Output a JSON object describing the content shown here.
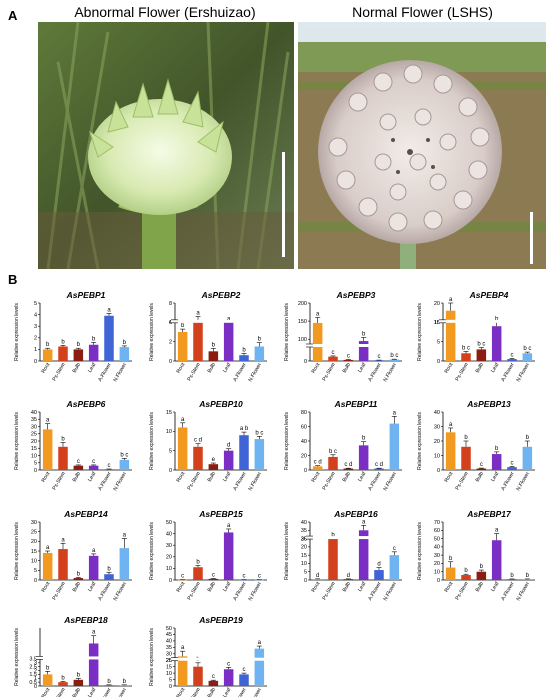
{
  "panel_a": {
    "letter": "A",
    "left_title": "Abnormal Flower (Ershuizao)",
    "right_title": "Normal Flower (LSHS)"
  },
  "panel_b": {
    "letter": "B",
    "ylabel": "Relative expression levels"
  },
  "colors": {
    "Root": "#f29a1f",
    "Ps-Stem": "#d2401c",
    "Bulb": "#8b1d12",
    "Leaf": "#7a2ec4",
    "A.Flower": "#3f64d6",
    "N.Flower": "#6fb4f0"
  },
  "chart_data": [
    {
      "type": "bar",
      "title": "AsPEBP1",
      "categories": [
        "Root",
        "Ps-Stem",
        "Bulb",
        "Leaf",
        "A.Flower",
        "N.Flower"
      ],
      "values": [
        1.0,
        1.25,
        1.0,
        1.4,
        3.9,
        1.2
      ],
      "errors": [
        0.1,
        0.1,
        0.1,
        0.2,
        0.2,
        0.1
      ],
      "letters": [
        "b",
        "b",
        "b",
        "b",
        "a",
        "b"
      ],
      "ylim": [
        0,
        5
      ],
      "ticks": [
        0,
        1,
        2,
        3,
        4,
        5
      ]
    },
    {
      "type": "bar",
      "title": "AsPEBP2",
      "categories": [
        "Root",
        "Ps-Stem",
        "Bulb",
        "Leaf",
        "A.Flower",
        "N.Flower"
      ],
      "values": [
        3.0,
        6.0,
        1.0,
        5.3,
        0.6,
        1.5
      ],
      "errors": [
        0.3,
        0.6,
        0.3,
        0.3,
        0.2,
        0.4
      ],
      "letters": [
        "b",
        "a",
        "b",
        "a",
        "b",
        "b"
      ],
      "ylim": [
        0,
        8
      ],
      "ticks": [
        0,
        2,
        4,
        6,
        8
      ],
      "break": {
        "from": 4,
        "to": 6
      }
    },
    {
      "type": "bar",
      "title": "AsPEBP3",
      "categories": [
        "Root",
        "Ps-Stem",
        "Bulb",
        "Leaf",
        "A.Flower",
        "N.Flower"
      ],
      "values": [
        145,
        12,
        3,
        95,
        2,
        4
      ],
      "errors": [
        15,
        2,
        1,
        10,
        0.5,
        1
      ],
      "letters": [
        "a",
        "c",
        "c",
        "b",
        "c",
        "b c"
      ],
      "ylim": [
        0,
        200
      ],
      "ticks": [
        0,
        50,
        100,
        150,
        200
      ],
      "break": {
        "from": 40,
        "to": 80
      }
    },
    {
      "type": "bar",
      "title": "AsPEBP4",
      "categories": [
        "Root",
        "Ps-Stem",
        "Bulb",
        "Leaf",
        "A.Flower",
        "N.Flower"
      ],
      "values": [
        18,
        2,
        3,
        9,
        0.5,
        2
      ],
      "errors": [
        2,
        0.5,
        0.5,
        2,
        0.2,
        0.3
      ],
      "letters": [
        "a",
        "b c",
        "b c",
        "b",
        "c",
        "b c"
      ],
      "ylim": [
        0,
        20
      ],
      "ticks": [
        0,
        5,
        10,
        15,
        20
      ],
      "break": {
        "from": 10,
        "to": 15
      }
    },
    {
      "type": "bar",
      "title": "AsPEBP6",
      "categories": [
        "Root",
        "Ps-Stem",
        "Bulb",
        "Leaf",
        "A.Flower",
        "N.Flower"
      ],
      "values": [
        28,
        16,
        3,
        3,
        0.5,
        7
      ],
      "errors": [
        4,
        3,
        0.5,
        0.5,
        0.2,
        1
      ],
      "letters": [
        "a",
        "b",
        "c",
        "c",
        "c",
        "b c"
      ],
      "ylim": [
        0,
        40
      ],
      "ticks": [
        0,
        5,
        10,
        15,
        20,
        25,
        30,
        35,
        40
      ]
    },
    {
      "type": "bar",
      "title": "AsPEBP10",
      "categories": [
        "Root",
        "Ps-Stem",
        "Bulb",
        "Leaf",
        "A.Flower",
        "N.Flower"
      ],
      "values": [
        11,
        6,
        1.5,
        5,
        9,
        8
      ],
      "errors": [
        1.2,
        0.8,
        0.3,
        0.5,
        0.8,
        0.7
      ],
      "letters": [
        "a",
        "c d",
        "e",
        "d",
        "a b",
        "b c"
      ],
      "ylim": [
        0,
        15
      ],
      "ticks": [
        0,
        5,
        10,
        15
      ]
    },
    {
      "type": "bar",
      "title": "AsPEBP11",
      "categories": [
        "Root",
        "Ps-Stem",
        "Bulb",
        "Leaf",
        "A.Flower",
        "N.Flower"
      ],
      "values": [
        5,
        18,
        2,
        34,
        2,
        64
      ],
      "errors": [
        1,
        3,
        0.5,
        5,
        0.5,
        10
      ],
      "letters": [
        "c d",
        "b c",
        "c d",
        "b",
        "c d",
        "a"
      ],
      "ylim": [
        0,
        80
      ],
      "ticks": [
        0,
        20,
        40,
        60,
        80
      ]
    },
    {
      "type": "bar",
      "title": "AsPEBP13",
      "categories": [
        "Root",
        "Ps-Stem",
        "Bulb",
        "Leaf",
        "A.Flower",
        "N.Flower"
      ],
      "values": [
        26,
        16,
        1,
        11,
        2,
        16
      ],
      "errors": [
        3,
        4,
        0.3,
        1.5,
        0.5,
        4
      ],
      "letters": [
        "a",
        "b",
        "c",
        "b",
        "c",
        "b"
      ],
      "ylim": [
        0,
        40
      ],
      "ticks": [
        0,
        10,
        20,
        30,
        40
      ]
    },
    {
      "type": "bar",
      "title": "AsPEBP14",
      "categories": [
        "Root",
        "Ps-Stem",
        "Bulb",
        "Leaf",
        "A.Flower",
        "N.Flower"
      ],
      "values": [
        14,
        16,
        1,
        12.5,
        3,
        16.5
      ],
      "errors": [
        1,
        3,
        0.3,
        1,
        1,
        5
      ],
      "letters": [
        "a",
        "a",
        "b",
        "a",
        "b",
        "a"
      ],
      "ylim": [
        0,
        30
      ],
      "ticks": [
        0,
        5,
        10,
        15,
        20,
        25,
        30
      ]
    },
    {
      "type": "bar",
      "title": "AsPEBP15",
      "categories": [
        "Root",
        "Ps-Stem",
        "Bulb",
        "Leaf",
        "A.Flower",
        "N.Flower"
      ],
      "values": [
        0.2,
        11,
        1,
        41,
        0.2,
        0.2
      ],
      "errors": [
        0.1,
        1.5,
        0.3,
        3,
        0.1,
        0.1
      ],
      "letters": [
        "c",
        "b",
        "c",
        "a",
        "c",
        "c"
      ],
      "ylim": [
        0,
        50
      ],
      "ticks": [
        0,
        10,
        20,
        30,
        40,
        50
      ]
    },
    {
      "type": "bar",
      "title": "AsPEBP16",
      "categories": [
        "Root",
        "Ps-Stem",
        "Bulb",
        "Leaf",
        "A.Flower",
        "N.Flower"
      ],
      "values": [
        0.5,
        25,
        0.5,
        35,
        6,
        15
      ],
      "errors": [
        0.2,
        2,
        0.2,
        3,
        1.5,
        2
      ],
      "letters": [
        "d",
        "b",
        "d",
        "a",
        "d",
        "c"
      ],
      "ylim": [
        0,
        40
      ],
      "ticks": [
        0,
        5,
        10,
        15,
        20,
        25,
        30,
        35,
        40
      ],
      "break": {
        "from": 25,
        "to": 30
      }
    },
    {
      "type": "bar",
      "title": "AsPEBP17",
      "categories": [
        "Root",
        "Ps-Stem",
        "Bulb",
        "Leaf",
        "A.Flower",
        "N.Flower"
      ],
      "values": [
        15,
        6,
        10,
        48,
        1,
        1
      ],
      "errors": [
        7,
        1,
        2,
        8,
        0.3,
        0.3
      ],
      "letters": [
        "b",
        "b",
        "b",
        "a",
        "b",
        "b"
      ],
      "ylim": [
        0,
        70
      ],
      "ticks": [
        0,
        10,
        20,
        30,
        40,
        50,
        60,
        70
      ]
    },
    {
      "type": "bar",
      "title": "AsPEBP18",
      "categories": [
        "Root",
        "Ps-Stem",
        "Bulb",
        "Leaf",
        "A.Flower",
        "N.Flower"
      ],
      "values": [
        1.5,
        0.5,
        0.8,
        18,
        0.1,
        0.1
      ],
      "errors": [
        0.4,
        0.1,
        0.2,
        1,
        0.05,
        0.05
      ],
      "letters": [
        "b",
        "b",
        "b",
        "a",
        "b",
        "b"
      ],
      "ylim": [
        0,
        20
      ],
      "ticks": [
        0,
        0.5,
        1.0,
        1.5,
        2.0,
        2.5,
        3.0,
        3.5
      ],
      "break": {
        "from": 3.5,
        "to": 16
      }
    },
    {
      "type": "bar",
      "title": "AsPEBP19",
      "categories": [
        "Root",
        "Ps-Stem",
        "Bulb",
        "Leaf",
        "A.Flower",
        "N.Flower"
      ],
      "values": [
        28,
        15,
        4,
        13,
        9,
        34
      ],
      "errors": [
        4,
        3,
        0.5,
        1.5,
        1,
        2
      ],
      "letters": [
        "a",
        "b",
        "c",
        "c",
        "c",
        "a"
      ],
      "ylim": [
        0,
        50
      ],
      "ticks": [
        0,
        5,
        10,
        15,
        20,
        25,
        30,
        35,
        40,
        45,
        50
      ],
      "break": {
        "from": 20,
        "to": 25
      }
    }
  ]
}
